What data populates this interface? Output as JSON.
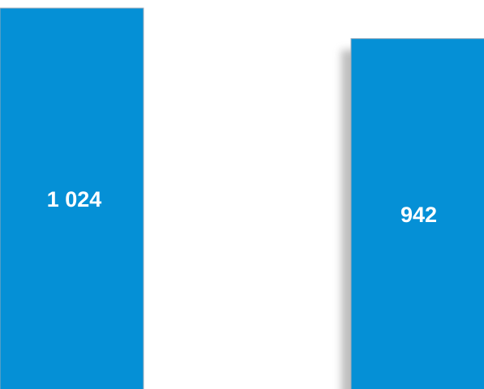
{
  "chart_data": {
    "type": "bar",
    "categories": [
      null,
      null
    ],
    "values": [
      1024,
      942
    ],
    "value_labels": [
      "1 024",
      "942"
    ],
    "color": "#0590d6"
  }
}
